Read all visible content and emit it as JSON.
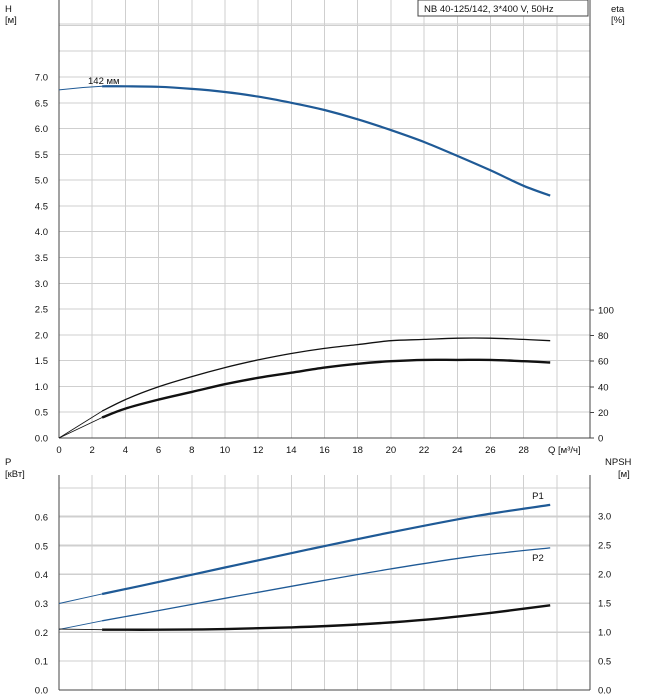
{
  "chart_data": [
    {
      "type": "line",
      "title": "NB 40-125/142, 3*400 V, 50Hz",
      "xlabel": "Q [м³/ч]",
      "xlim": [
        0,
        32
      ],
      "xticks": [
        "0",
        "2",
        "4",
        "6",
        "8",
        "10",
        "12",
        "14",
        "16",
        "18",
        "20",
        "22",
        "24",
        "26",
        "28"
      ],
      "left_axis": {
        "label_line1": "H",
        "label_line2": "[м]",
        "ylim": [
          0,
          8
        ],
        "ticks": [
          "0.0",
          "0.5",
          "1.0",
          "1.5",
          "2.0",
          "2.5",
          "3.0",
          "3.5",
          "4.0",
          "4.5",
          "5.0",
          "5.5",
          "6.0",
          "6.5",
          "7.0"
        ]
      },
      "right_axis": {
        "label_line1": "eta",
        "label_line2": "[%]",
        "ylim": [
          0,
          100
        ],
        "ticks": [
          "0",
          "20",
          "40",
          "60",
          "80",
          "100"
        ]
      },
      "annotations": [
        {
          "text": "142 мм"
        }
      ],
      "series": [
        {
          "key": "H",
          "axis": "left",
          "color": "#1f5a96",
          "x": [
            2.6,
            4,
            6,
            8,
            10,
            12,
            14,
            16,
            18,
            20,
            22,
            24,
            26,
            28,
            29.6
          ],
          "y": [
            6.82,
            6.82,
            6.81,
            6.77,
            6.71,
            6.62,
            6.5,
            6.36,
            6.18,
            5.97,
            5.74,
            5.47,
            5.19,
            4.89,
            4.7
          ]
        },
        {
          "key": "eta_thin",
          "axis": "right",
          "color": "#111111",
          "x": [
            2.6,
            4,
            6,
            8,
            10,
            12,
            14,
            16,
            18,
            20,
            22,
            24,
            26,
            28,
            29.6
          ],
          "y": [
            21,
            30,
            40,
            48,
            55,
            61,
            66,
            70,
            73,
            76,
            77,
            78,
            78,
            77,
            76
          ]
        },
        {
          "key": "eta_thick",
          "axis": "right",
          "color": "#111111",
          "x": [
            2.6,
            4,
            6,
            8,
            10,
            12,
            14,
            16,
            18,
            20,
            22,
            24,
            26,
            28,
            29.6
          ],
          "y": [
            16,
            23,
            30,
            36,
            42,
            47,
            51,
            55,
            58,
            60,
            61,
            61,
            61,
            60,
            59
          ]
        }
      ]
    },
    {
      "type": "line",
      "xlim": [
        0,
        32
      ],
      "left_axis": {
        "label_line1": "P",
        "label_line2": "[кВт]",
        "ylim": [
          0,
          0.7
        ],
        "ticks": [
          "0.0",
          "0.1",
          "0.2",
          "0.3",
          "0.4",
          "0.5",
          "0.6"
        ]
      },
      "right_axis": {
        "label_line1": "NPSH",
        "label_line2": "[м]",
        "ylim": [
          0,
          3.5
        ],
        "ticks": [
          "0.0",
          "0.5",
          "1.0",
          "1.5",
          "2.0",
          "2.5",
          "3.0"
        ]
      },
      "series": [
        {
          "name": "P1",
          "axis": "left",
          "color": "#1f5a96",
          "x": [
            2.6,
            5,
            10,
            15,
            20,
            25,
            29.6
          ],
          "y": [
            0.333,
            0.362,
            0.425,
            0.487,
            0.547,
            0.602,
            0.642
          ]
        },
        {
          "name": "P2",
          "axis": "left",
          "color": "#1f5a96",
          "x": [
            2.6,
            5,
            10,
            15,
            20,
            25,
            29.6
          ],
          "y": [
            0.24,
            0.265,
            0.318,
            0.37,
            0.42,
            0.464,
            0.493
          ]
        },
        {
          "key": "NPSH",
          "axis": "right",
          "color": "#111111",
          "x": [
            2.6,
            6,
            10,
            14,
            18,
            22,
            26,
            29.6
          ],
          "y": [
            1.04,
            1.04,
            1.05,
            1.08,
            1.13,
            1.21,
            1.33,
            1.46
          ]
        }
      ]
    }
  ]
}
